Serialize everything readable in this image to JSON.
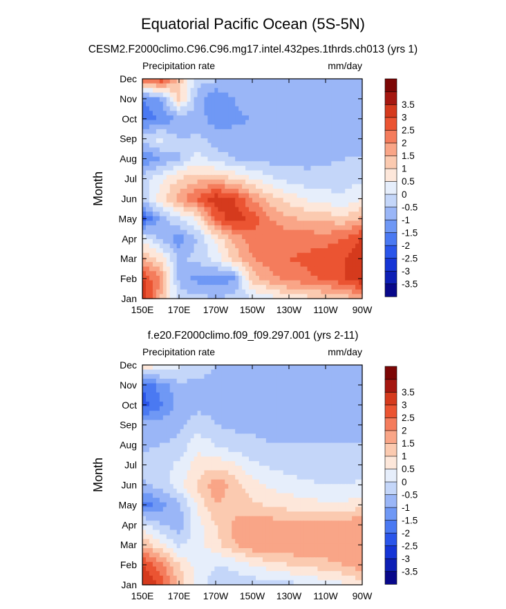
{
  "title": "Equatorial Pacific Ocean (5S-5N)",
  "colorbar": {
    "levels": [
      -3.5,
      -3,
      -2.5,
      -2,
      -1.5,
      -1,
      -0.5,
      0,
      0.5,
      1,
      1.5,
      2,
      2.5,
      3,
      3.5
    ],
    "labels": [
      "-3.5",
      "-3",
      "-2.5",
      "-2",
      "-1.5",
      "-1",
      "-0.5",
      "0",
      "0.5",
      "1",
      "1.5",
      "2",
      "2.5",
      "3",
      "3.5"
    ],
    "colors": [
      "#08088a",
      "#0d1fb5",
      "#1535d6",
      "#2a55ea",
      "#4a79f2",
      "#6f98f5",
      "#9ab6f7",
      "#c4d6f9",
      "#e6eefb",
      "#fde7da",
      "#fbcab0",
      "#f9a587",
      "#f47c5c",
      "#eb5432",
      "#d53a1d",
      "#a51710",
      "#7c0605"
    ]
  },
  "chart_data": [
    {
      "type": "heatmap",
      "subtitle": "CESM2.F2000climo.C96.C96.mg17.intel.432pes.1thrds.ch013 (yrs 1)",
      "left_label": "Precipitation rate",
      "right_label": "mm/day",
      "ylabel": "Month",
      "xticks": [
        "150E",
        "170E",
        "170W",
        "150W",
        "130W",
        "110W",
        "90W"
      ],
      "yticks": [
        "Jan",
        "Feb",
        "Mar",
        "Apr",
        "May",
        "Jun",
        "Jul",
        "Aug",
        "Sep",
        "Oct",
        "Nov",
        "Dec"
      ],
      "x_lon": [
        150,
        160,
        170,
        180,
        190,
        200,
        210,
        220,
        230,
        240,
        250,
        260,
        270
      ],
      "values": [
        [
          3.6,
          1.5,
          -0.3,
          -0.3,
          -0.5,
          -0.3,
          0.0,
          0.3,
          0.6,
          0.8,
          1.0,
          1.2,
          1.6
        ],
        [
          3.0,
          2.0,
          -0.6,
          -1.2,
          -1.3,
          -1.1,
          1.2,
          1.8,
          2.2,
          2.4,
          2.6,
          3.0,
          3.4
        ],
        [
          1.6,
          0.8,
          -0.6,
          -0.3,
          0.2,
          1.2,
          2.0,
          2.3,
          2.5,
          2.6,
          2.8,
          3.0,
          3.5
        ],
        [
          0.3,
          -0.6,
          -1.3,
          -0.5,
          0.6,
          1.6,
          2.3,
          2.4,
          2.3,
          2.3,
          2.3,
          2.5,
          3.0
        ],
        [
          -2.2,
          -0.8,
          0.0,
          0.6,
          2.6,
          3.4,
          2.8,
          2.0,
          1.6,
          1.4,
          1.3,
          1.2,
          1.6
        ],
        [
          -0.3,
          0.8,
          1.8,
          2.6,
          3.4,
          3.0,
          2.0,
          1.2,
          0.8,
          0.4,
          0.2,
          0.1,
          0.5
        ],
        [
          -0.3,
          0.4,
          1.0,
          1.3,
          1.4,
          1.0,
          0.5,
          0.1,
          -0.2,
          -0.3,
          -0.3,
          -0.2,
          -0.1
        ],
        [
          -1.5,
          -1.0,
          -0.5,
          0.3,
          -0.3,
          -0.5,
          -0.6,
          -0.7,
          -0.7,
          -0.7,
          -0.6,
          -0.5,
          -0.5
        ],
        [
          -0.3,
          0.2,
          -0.5,
          -0.4,
          -0.7,
          -0.7,
          -0.6,
          -0.6,
          -0.7,
          -0.7,
          -0.6,
          -0.6,
          -0.6
        ],
        [
          -1.8,
          -1.4,
          -1.0,
          -0.7,
          -1.3,
          -1.2,
          -1.0,
          -0.8,
          -0.8,
          -0.7,
          -0.6,
          -0.6,
          -0.6
        ],
        [
          -1.5,
          -1.0,
          1.2,
          -0.7,
          -1.5,
          -1.0,
          -0.5,
          -0.7,
          -0.8,
          -0.7,
          -0.6,
          -0.6,
          -0.5
        ],
        [
          2.6,
          3.0,
          1.3,
          -0.3,
          -0.4,
          -0.5,
          -0.7,
          -0.8,
          -0.8,
          -0.7,
          -0.6,
          -0.6,
          -0.5
        ]
      ]
    },
    {
      "type": "heatmap",
      "subtitle": "f.e20.F2000climo.f09_f09.297.001 (yrs 2-11)",
      "left_label": "Precipitation rate",
      "right_label": "mm/day",
      "ylabel": "Month",
      "xticks": [
        "150E",
        "170E",
        "170W",
        "150W",
        "130W",
        "110W",
        "90W"
      ],
      "yticks": [
        "Jan",
        "Feb",
        "Mar",
        "Apr",
        "May",
        "Jun",
        "Jul",
        "Aug",
        "Sep",
        "Oct",
        "Nov",
        "Dec"
      ],
      "x_lon": [
        150,
        160,
        170,
        180,
        190,
        200,
        210,
        220,
        230,
        240,
        250,
        260,
        270
      ],
      "values": [
        [
          3.6,
          2.8,
          1.4,
          0.2,
          -0.2,
          -0.3,
          -0.3,
          -0.3,
          -0.2,
          0.0,
          0.2,
          0.4,
          0.8
        ],
        [
          3.0,
          2.2,
          1.0,
          0.3,
          0.0,
          0.1,
          0.5,
          0.8,
          1.0,
          1.1,
          1.3,
          1.5,
          1.8
        ],
        [
          1.5,
          0.6,
          -0.1,
          0.3,
          0.8,
          1.5,
          1.9,
          2.0,
          2.0,
          2.0,
          2.0,
          2.0,
          2.0
        ],
        [
          0.2,
          -0.5,
          -0.8,
          0.3,
          1.0,
          1.6,
          1.8,
          1.8,
          1.7,
          1.6,
          1.6,
          1.8,
          2.0
        ],
        [
          -1.8,
          -1.2,
          -0.6,
          0.6,
          1.5,
          1.3,
          1.1,
          0.9,
          0.8,
          0.7,
          0.6,
          0.6,
          0.8
        ],
        [
          -0.6,
          -0.3,
          0.3,
          1.1,
          1.9,
          1.3,
          0.7,
          0.4,
          0.2,
          0.1,
          0.0,
          0.0,
          0.1
        ],
        [
          -0.4,
          -0.2,
          0.1,
          0.7,
          0.8,
          0.6,
          0.1,
          -0.1,
          -0.2,
          -0.3,
          -0.3,
          -0.3,
          -0.3
        ],
        [
          -0.6,
          -0.5,
          -0.4,
          0.4,
          0.0,
          -0.3,
          -0.4,
          -0.5,
          -0.5,
          -0.5,
          -0.5,
          -0.5,
          -0.5
        ],
        [
          -0.8,
          -0.7,
          -0.6,
          -0.3,
          -0.5,
          -0.6,
          -0.6,
          -0.6,
          -0.6,
          -0.6,
          -0.6,
          -0.6,
          -0.6
        ],
        [
          -2.2,
          -1.6,
          -0.8,
          -0.6,
          -0.6,
          -0.6,
          -0.7,
          -0.7,
          -0.7,
          -0.7,
          -0.6,
          -0.6,
          -0.5
        ],
        [
          -2.0,
          -1.3,
          -0.6,
          -0.6,
          -0.6,
          -0.5,
          -0.6,
          -0.7,
          -0.7,
          -0.7,
          -0.6,
          -0.6,
          -0.5
        ],
        [
          1.0,
          0.6,
          0.1,
          -0.3,
          -0.5,
          -0.5,
          -0.6,
          -0.6,
          -0.6,
          -0.6,
          -0.6,
          -0.6,
          -0.5
        ]
      ]
    }
  ]
}
